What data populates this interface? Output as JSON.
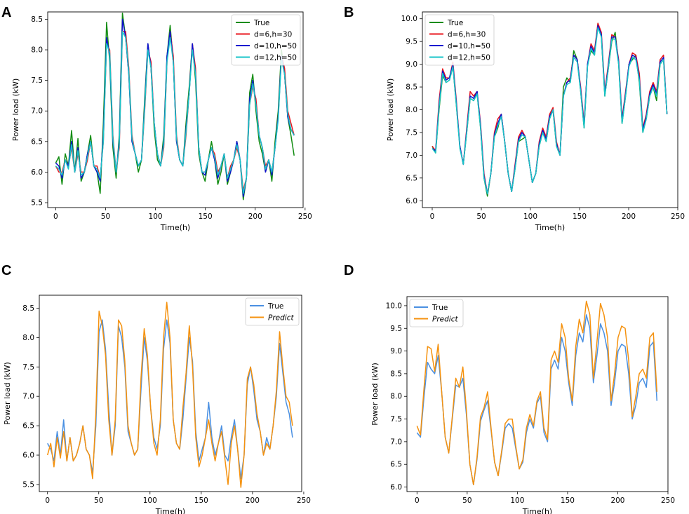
{
  "figure": {
    "panels": [
      "A",
      "B",
      "C",
      "D"
    ]
  },
  "colors": {
    "true_green": "#118c11",
    "d6": "#e8161e",
    "d10": "#1010d0",
    "d12": "#19c4c8",
    "true_blue": "#4a90e2",
    "predict": "#f5920f"
  },
  "chart_data": [
    {
      "panel": "A",
      "type": "line",
      "title": "",
      "xlabel": "Time(h)",
      "ylabel": "Power load (kW)",
      "xlim": [
        -8,
        248
      ],
      "ylim": [
        5.42,
        8.62
      ],
      "xticks": [
        0,
        50,
        100,
        150,
        200,
        250
      ],
      "yticks": [
        5.5,
        6.0,
        6.5,
        7.0,
        7.5,
        8.0,
        8.5
      ],
      "legend_position": "top-right",
      "series": [
        {
          "name": "True",
          "color_key": "true_green",
          "style": "solid",
          "values": [
            6.15,
            6.25,
            5.8,
            6.3,
            6.1,
            6.68,
            6.0,
            6.55,
            5.85,
            6.0,
            6.3,
            6.6,
            6.1,
            6.0,
            5.65,
            6.8,
            8.45,
            7.8,
            6.4,
            5.9,
            6.6,
            8.6,
            8.2,
            7.6,
            6.5,
            6.3,
            6.0,
            6.2,
            7.2,
            8.1,
            7.7,
            6.7,
            6.2,
            6.1,
            6.6,
            7.9,
            8.4,
            7.8,
            6.5,
            6.2,
            6.1,
            6.8,
            7.4,
            8.1,
            7.5,
            6.3,
            6.0,
            5.85,
            6.2,
            6.5,
            6.2,
            5.8,
            6.0,
            6.3,
            5.8,
            6.0,
            6.2,
            6.5,
            6.2,
            5.55,
            5.9,
            7.3,
            7.6,
            7.0,
            6.5,
            6.3,
            6.0,
            6.2,
            5.85,
            6.5,
            7.0,
            8.0,
            7.6,
            6.9,
            6.6,
            6.27
          ]
        },
        {
          "name": "d=6,h=30",
          "color_key": "d6",
          "style": "solid",
          "values": [
            6.1,
            6.0,
            6.0,
            6.2,
            6.1,
            6.4,
            6.0,
            6.3,
            6.0,
            6.0,
            6.2,
            6.5,
            6.1,
            6.1,
            5.9,
            6.5,
            8.1,
            8.0,
            6.6,
            6.0,
            6.4,
            8.3,
            8.3,
            7.7,
            6.6,
            6.3,
            6.1,
            6.2,
            7.0,
            8.0,
            7.8,
            6.8,
            6.3,
            6.1,
            6.4,
            7.8,
            8.3,
            7.9,
            6.6,
            6.2,
            6.1,
            6.6,
            7.3,
            8.1,
            7.7,
            6.4,
            6.0,
            6.0,
            6.2,
            6.4,
            6.3,
            6.0,
            6.1,
            6.3,
            5.9,
            6.1,
            6.2,
            6.4,
            6.2,
            5.7,
            5.9,
            7.1,
            7.4,
            7.2,
            6.6,
            6.4,
            6.1,
            6.2,
            6.0,
            6.4,
            6.9,
            7.9,
            7.7,
            7.0,
            6.8,
            6.6
          ]
        },
        {
          "name": "d=10,h=50",
          "color_key": "d10",
          "style": "solid",
          "values": [
            6.15,
            6.1,
            5.9,
            6.2,
            6.1,
            6.5,
            6.0,
            6.4,
            5.9,
            6.0,
            6.3,
            6.5,
            6.1,
            6.0,
            5.85,
            6.6,
            8.2,
            7.9,
            6.5,
            6.0,
            6.5,
            8.5,
            8.2,
            7.6,
            6.5,
            6.3,
            6.1,
            6.2,
            7.1,
            8.1,
            7.7,
            6.8,
            6.3,
            6.1,
            6.5,
            7.9,
            8.3,
            7.8,
            6.5,
            6.2,
            6.1,
            6.7,
            7.3,
            8.1,
            7.6,
            6.4,
            6.0,
            5.95,
            6.2,
            6.4,
            6.2,
            5.9,
            6.1,
            6.3,
            5.85,
            6.0,
            6.2,
            6.5,
            6.2,
            5.6,
            5.9,
            7.2,
            7.5,
            7.1,
            6.6,
            6.4,
            6.0,
            6.2,
            5.95,
            6.4,
            6.9,
            7.9,
            7.6,
            6.9,
            6.7,
            6.6
          ]
        },
        {
          "name": "d=12,h=50",
          "color_key": "d12",
          "style": "solid",
          "values": [
            6.1,
            6.05,
            5.95,
            6.2,
            6.05,
            6.45,
            6.0,
            6.35,
            5.95,
            6.0,
            6.25,
            6.5,
            6.1,
            6.05,
            5.9,
            6.5,
            8.1,
            7.95,
            6.55,
            6.0,
            6.45,
            8.3,
            8.2,
            7.65,
            6.55,
            6.3,
            6.1,
            6.2,
            7.05,
            8.0,
            7.7,
            6.8,
            6.3,
            6.1,
            6.45,
            7.8,
            8.2,
            7.8,
            6.55,
            6.2,
            6.1,
            6.65,
            7.3,
            8.0,
            7.6,
            6.4,
            6.0,
            6.0,
            6.2,
            6.4,
            6.25,
            5.95,
            6.1,
            6.3,
            5.9,
            6.05,
            6.2,
            6.45,
            6.2,
            5.65,
            5.9,
            7.1,
            7.45,
            7.1,
            6.6,
            6.4,
            6.05,
            6.2,
            6.0,
            6.4,
            6.85,
            7.85,
            7.6,
            6.95,
            6.7,
            6.6
          ]
        }
      ]
    },
    {
      "panel": "B",
      "type": "line",
      "title": "",
      "xlabel": "Time(h)",
      "ylabel": "Power load (kW)",
      "xlim": [
        -10,
        250
      ],
      "ylim": [
        5.85,
        10.15
      ],
      "xticks": [
        0,
        50,
        100,
        150,
        200,
        250
      ],
      "yticks": [
        6.0,
        6.5,
        7.0,
        7.5,
        8.0,
        8.5,
        9.0,
        9.5,
        10.0
      ],
      "legend_position": "top-left",
      "series": [
        {
          "name": "True",
          "color_key": "true_green",
          "style": "solid",
          "values": [
            7.2,
            7.05,
            8.0,
            8.75,
            8.6,
            8.65,
            8.95,
            8.1,
            7.2,
            6.8,
            7.5,
            8.25,
            8.2,
            8.35,
            7.6,
            6.5,
            6.1,
            6.6,
            7.4,
            7.6,
            7.9,
            7.3,
            6.6,
            6.2,
            6.7,
            7.3,
            7.35,
            7.4,
            6.9,
            6.4,
            6.6,
            7.2,
            7.5,
            7.3,
            7.8,
            8.0,
            7.2,
            7.0,
            8.5,
            8.7,
            8.6,
            9.3,
            9.1,
            8.4,
            7.6,
            9.0,
            9.3,
            9.2,
            9.9,
            9.6,
            8.3,
            8.9,
            9.5,
            9.7,
            9.0,
            7.7,
            8.3,
            9.0,
            9.1,
            9.2,
            8.6,
            7.5,
            7.8,
            8.3,
            8.5,
            8.2,
            9.0,
            9.1,
            7.9
          ]
        },
        {
          "name": "d=6,h=30",
          "color_key": "d6",
          "style": "solid",
          "values": [
            7.2,
            7.1,
            8.2,
            8.9,
            8.7,
            8.7,
            9.05,
            8.2,
            7.2,
            6.8,
            7.6,
            8.4,
            8.3,
            8.4,
            7.7,
            6.6,
            6.15,
            6.6,
            7.5,
            7.8,
            7.9,
            7.3,
            6.6,
            6.2,
            6.8,
            7.4,
            7.55,
            7.4,
            6.9,
            6.4,
            6.6,
            7.3,
            7.6,
            7.4,
            7.9,
            8.05,
            7.3,
            7.0,
            8.3,
            8.6,
            8.7,
            9.2,
            9.1,
            8.5,
            7.7,
            9.0,
            9.45,
            9.3,
            9.9,
            9.7,
            8.4,
            9.0,
            9.65,
            9.6,
            9.1,
            7.8,
            8.4,
            9.0,
            9.25,
            9.2,
            8.8,
            7.6,
            7.9,
            8.4,
            8.6,
            8.4,
            9.1,
            9.2,
            7.9
          ]
        },
        {
          "name": "d=10,h=50",
          "color_key": "d10",
          "style": "solid",
          "values": [
            7.15,
            7.1,
            8.1,
            8.85,
            8.65,
            8.7,
            9.0,
            8.15,
            7.2,
            6.8,
            7.55,
            8.3,
            8.25,
            8.4,
            7.65,
            6.55,
            6.15,
            6.6,
            7.45,
            7.7,
            7.9,
            7.3,
            6.6,
            6.2,
            6.75,
            7.35,
            7.5,
            7.4,
            6.9,
            6.4,
            6.6,
            7.25,
            7.55,
            7.35,
            7.85,
            8.0,
            7.25,
            7.0,
            8.3,
            8.6,
            8.65,
            9.2,
            9.1,
            8.45,
            7.65,
            9.0,
            9.4,
            9.25,
            9.85,
            9.65,
            8.35,
            8.95,
            9.6,
            9.6,
            9.05,
            7.75,
            8.35,
            9.0,
            9.2,
            9.15,
            8.7,
            7.55,
            7.85,
            8.35,
            8.55,
            8.35,
            9.05,
            9.15,
            7.9
          ]
        },
        {
          "name": "d=12,h=50",
          "color_key": "d12",
          "style": "solid",
          "values": [
            7.15,
            7.05,
            8.05,
            8.8,
            8.6,
            8.65,
            8.95,
            8.1,
            7.15,
            6.8,
            7.5,
            8.25,
            8.2,
            8.35,
            7.6,
            6.5,
            6.15,
            6.6,
            7.4,
            7.65,
            7.85,
            7.3,
            6.6,
            6.2,
            6.7,
            7.3,
            7.45,
            7.4,
            6.9,
            6.4,
            6.6,
            7.2,
            7.5,
            7.3,
            7.8,
            8.0,
            7.2,
            7.0,
            8.3,
            8.55,
            8.6,
            9.15,
            9.05,
            8.4,
            7.6,
            8.95,
            9.35,
            9.2,
            9.8,
            9.6,
            8.3,
            8.9,
            9.55,
            9.55,
            9.0,
            7.7,
            8.3,
            8.95,
            9.15,
            9.1,
            8.65,
            7.5,
            7.8,
            8.3,
            8.5,
            8.3,
            9.0,
            9.1,
            7.9
          ]
        }
      ]
    },
    {
      "panel": "C",
      "type": "line",
      "title": "",
      "xlabel": "Time(h)",
      "ylabel": "Power load (kW)",
      "xlim": [
        -8,
        248
      ],
      "ylim": [
        5.38,
        8.72
      ],
      "xticks": [
        0,
        50,
        100,
        150,
        200,
        250
      ],
      "yticks": [
        5.5,
        6.0,
        6.5,
        7.0,
        7.5,
        8.0,
        8.5
      ],
      "legend_position": "top-right",
      "series": [
        {
          "name": "True",
          "color_key": "true_blue",
          "style": "solid",
          "values": [
            6.2,
            6.1,
            5.9,
            6.4,
            6.0,
            6.6,
            5.9,
            6.3,
            5.9,
            6.0,
            6.2,
            6.5,
            6.1,
            6.0,
            5.7,
            6.5,
            8.1,
            8.3,
            7.8,
            6.8,
            6.0,
            6.5,
            8.2,
            8.0,
            7.5,
            6.4,
            6.2,
            6.0,
            6.1,
            7.1,
            8.0,
            7.6,
            6.8,
            6.3,
            6.1,
            6.5,
            7.8,
            8.3,
            7.9,
            6.6,
            6.2,
            6.1,
            6.6,
            7.3,
            8.0,
            7.6,
            6.4,
            5.9,
            6.1,
            6.3,
            6.9,
            6.3,
            6.0,
            6.2,
            6.5,
            6.0,
            5.9,
            6.3,
            6.6,
            6.1,
            5.6,
            6.0,
            7.2,
            7.5,
            7.1,
            6.6,
            6.4,
            6.0,
            6.3,
            6.1,
            6.5,
            7.0,
            7.9,
            7.4,
            6.9,
            6.7,
            6.3
          ]
        },
        {
          "name": "Predict",
          "color_key": "predict",
          "style": "solid",
          "values": [
            6.0,
            6.2,
            5.8,
            6.3,
            5.95,
            6.4,
            5.9,
            6.3,
            5.9,
            6.0,
            6.2,
            6.5,
            6.1,
            6.0,
            5.6,
            6.7,
            8.45,
            8.2,
            7.7,
            6.6,
            6.0,
            6.6,
            8.3,
            8.2,
            7.6,
            6.5,
            6.2,
            6.0,
            6.1,
            7.3,
            8.15,
            7.7,
            6.8,
            6.2,
            6.0,
            6.6,
            8.0,
            8.6,
            8.0,
            6.6,
            6.2,
            6.1,
            6.8,
            7.4,
            8.2,
            7.5,
            6.3,
            5.8,
            6.0,
            6.3,
            6.6,
            6.2,
            5.9,
            6.2,
            6.4,
            5.95,
            5.5,
            6.2,
            6.5,
            6.1,
            5.45,
            6.0,
            7.3,
            7.5,
            7.2,
            6.7,
            6.4,
            6.0,
            6.2,
            6.1,
            6.5,
            7.1,
            8.1,
            7.5,
            7.0,
            6.9,
            6.5
          ]
        }
      ]
    },
    {
      "panel": "D",
      "type": "line",
      "title": "",
      "xlabel": "Time(h)",
      "ylabel": "Power load (kW)",
      "xlim": [
        -10,
        250
      ],
      "ylim": [
        5.9,
        10.2
      ],
      "xticks": [
        0,
        50,
        100,
        150,
        200,
        250
      ],
      "yticks": [
        6.0,
        6.5,
        7.0,
        7.5,
        8.0,
        8.5,
        9.0,
        9.5,
        10.0
      ],
      "legend_position": "top-left",
      "series": [
        {
          "name": "True",
          "color_key": "true_blue",
          "style": "solid",
          "values": [
            7.2,
            7.1,
            8.0,
            8.75,
            8.6,
            8.5,
            8.9,
            8.1,
            7.1,
            6.75,
            7.5,
            8.25,
            8.2,
            8.4,
            7.6,
            6.5,
            6.05,
            6.6,
            7.45,
            7.7,
            7.9,
            7.25,
            6.55,
            6.25,
            6.75,
            7.3,
            7.4,
            7.3,
            6.85,
            6.4,
            6.55,
            7.2,
            7.5,
            7.3,
            7.85,
            8.0,
            7.2,
            7.0,
            8.6,
            8.8,
            8.6,
            9.3,
            9.0,
            8.3,
            7.8,
            8.9,
            9.4,
            9.2,
            9.8,
            9.5,
            8.3,
            8.9,
            9.6,
            9.4,
            9.0,
            7.8,
            8.3,
            9.0,
            9.15,
            9.1,
            8.5,
            7.5,
            7.8,
            8.3,
            8.4,
            8.2,
            9.1,
            9.2,
            7.9
          ]
        },
        {
          "name": "Predict",
          "color_key": "predict",
          "style": "solid",
          "values": [
            7.35,
            7.15,
            8.2,
            9.1,
            9.05,
            8.55,
            9.15,
            8.1,
            7.1,
            6.75,
            7.55,
            8.4,
            8.2,
            8.65,
            7.7,
            6.5,
            6.05,
            6.65,
            7.55,
            7.75,
            8.1,
            7.3,
            6.55,
            6.25,
            6.8,
            7.4,
            7.5,
            7.5,
            6.9,
            6.4,
            6.6,
            7.3,
            7.6,
            7.35,
            7.9,
            8.1,
            7.3,
            7.05,
            8.8,
            9.0,
            8.75,
            9.6,
            9.3,
            8.4,
            7.9,
            9.1,
            9.7,
            9.4,
            10.1,
            9.8,
            8.4,
            9.2,
            10.05,
            9.8,
            9.3,
            7.9,
            8.5,
            9.3,
            9.55,
            9.5,
            8.8,
            7.55,
            8.0,
            8.5,
            8.6,
            8.4,
            9.3,
            9.4,
            8.1
          ]
        }
      ]
    }
  ]
}
